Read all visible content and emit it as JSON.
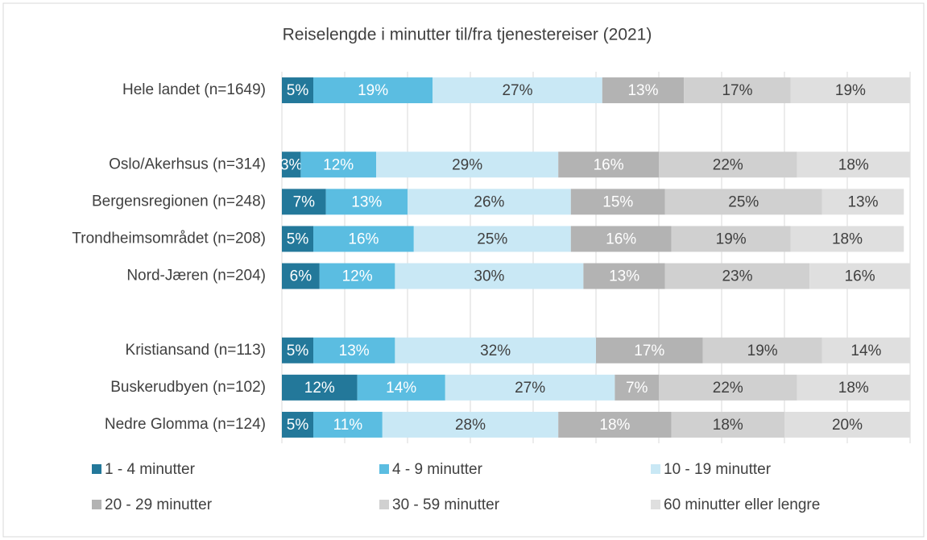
{
  "chart_data": {
    "type": "stacked_barh",
    "title": "Reiselengde i minutter til/fra tjenestereiser (2021)",
    "categories": [
      "Hele landet (n=1649)",
      null,
      "Oslo/Akerhsus (n=314)",
      "Bergensregionen (n=248)",
      "Trondheimsområdet (n=208)",
      "Nord-Jæren (n=204)",
      null,
      "Kristiansand (n=113)",
      "Buskerudbyen (n=102)",
      "Nedre Glomma (n=124)"
    ],
    "series": [
      {
        "name": "1 - 4 minutter",
        "color": "#23789a",
        "values": [
          5,
          null,
          3,
          7,
          5,
          6,
          null,
          5,
          12,
          5
        ],
        "value_labels": [
          "5%",
          null,
          "3%",
          "7%",
          "5%",
          "6%",
          null,
          "5%",
          "12%",
          "5%"
        ]
      },
      {
        "name": "4 - 9 minutter",
        "color": "#5bbde1",
        "values": [
          19,
          null,
          12,
          13,
          16,
          12,
          null,
          13,
          14,
          11
        ],
        "value_labels": [
          "19%",
          null,
          "12%",
          "13%",
          "16%",
          "12%",
          null,
          "13%",
          "14%",
          "11%"
        ]
      },
      {
        "name": "10 - 19 minutter",
        "color": "#c9e8f5",
        "values": [
          27,
          null,
          29,
          26,
          25,
          30,
          null,
          32,
          27,
          28
        ],
        "value_labels": [
          "27%",
          null,
          "29%",
          "26%",
          "25%",
          "30%",
          null,
          "32%",
          "27%",
          "28%"
        ]
      },
      {
        "name": "20 - 29 minutter",
        "color": "#b3b3b3",
        "values": [
          13,
          null,
          16,
          15,
          16,
          13,
          null,
          17,
          7,
          18
        ],
        "value_labels": [
          "13%",
          null,
          "16%",
          "15%",
          "16%",
          "13%",
          null,
          "17%",
          "7%",
          "18%"
        ]
      },
      {
        "name": "30 - 59 minutter",
        "color": "#d0d0d0",
        "values": [
          17,
          null,
          22,
          25,
          19,
          23,
          null,
          19,
          22,
          18
        ],
        "value_labels": [
          "17%",
          null,
          "22%",
          "25%",
          "19%",
          "23%",
          null,
          "19%",
          "22%",
          "18%"
        ]
      },
      {
        "name": "60 minutter eller lengre",
        "color": "#dfdfdf",
        "values": [
          19,
          null,
          18,
          13,
          18,
          16,
          null,
          14,
          18,
          20
        ],
        "value_labels": [
          "19%",
          null,
          "18%",
          "13%",
          "18%",
          "16%",
          null,
          "14%",
          "18%",
          "20%"
        ]
      }
    ],
    "xlim": [
      0,
      100
    ],
    "xticks": [
      0,
      10,
      20,
      30,
      40,
      50,
      60,
      70,
      80,
      90,
      100
    ],
    "grid": true
  }
}
